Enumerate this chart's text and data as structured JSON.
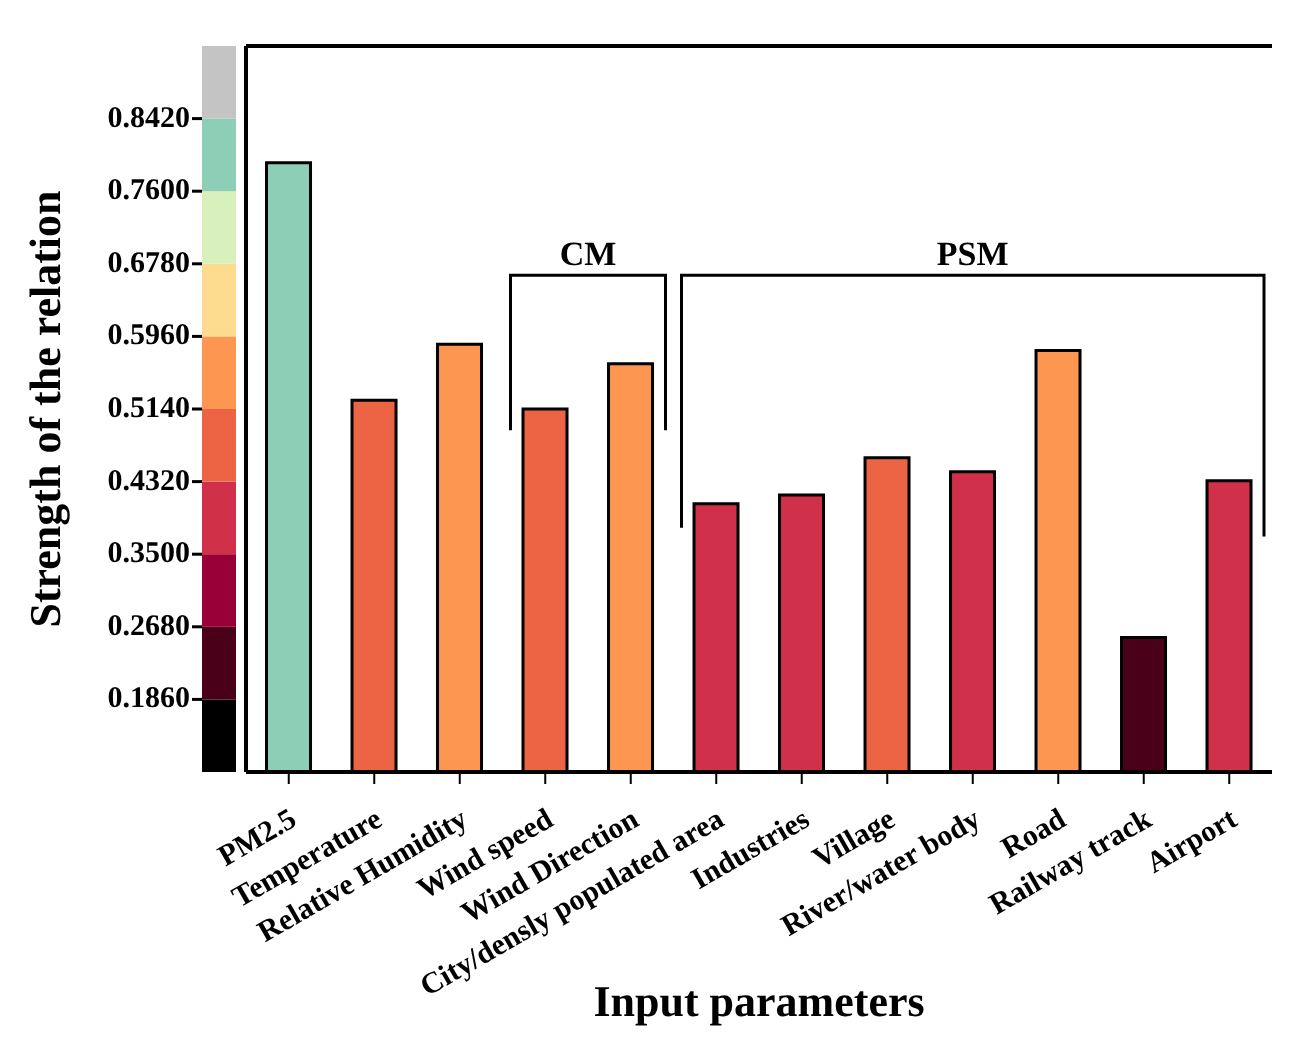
{
  "chart_data": {
    "type": "bar",
    "xlabel": "Input parameters",
    "ylabel": "Strength of the relation",
    "categories": [
      "PM2.5",
      "Temperature",
      "Relative Humidity",
      "Wind speed",
      "Wind Direction",
      "City/densly populated area",
      "Industries",
      "Village",
      "River/water body",
      "Road",
      "Railway track",
      "Airport"
    ],
    "values": [
      0.792,
      0.524,
      0.587,
      0.514,
      0.565,
      0.407,
      0.417,
      0.459,
      0.443,
      0.58,
      0.256,
      0.433
    ],
    "colors": [
      "#8ccfb6",
      "#ec6444",
      "#fd9650",
      "#ec6444",
      "#fd9650",
      "#d0304a",
      "#d0304a",
      "#ec6444",
      "#d0304a",
      "#fd9650",
      "#4a0018",
      "#d0304a"
    ],
    "ylim": [
      0.104,
      0.924
    ],
    "yticks": [
      {
        "value": 0.186,
        "label": "0.1860"
      },
      {
        "value": 0.268,
        "label": "0.2680"
      },
      {
        "value": 0.35,
        "label": "0.3500"
      },
      {
        "value": 0.432,
        "label": "0.4320"
      },
      {
        "value": 0.514,
        "label": "0.5140"
      },
      {
        "value": 0.596,
        "label": "0.5960"
      },
      {
        "value": 0.678,
        "label": "0.6780"
      },
      {
        "value": 0.76,
        "label": "0.7600"
      },
      {
        "value": 0.842,
        "label": "0.8420"
      }
    ],
    "annotations": [
      "CM",
      "PSM"
    ]
  }
}
